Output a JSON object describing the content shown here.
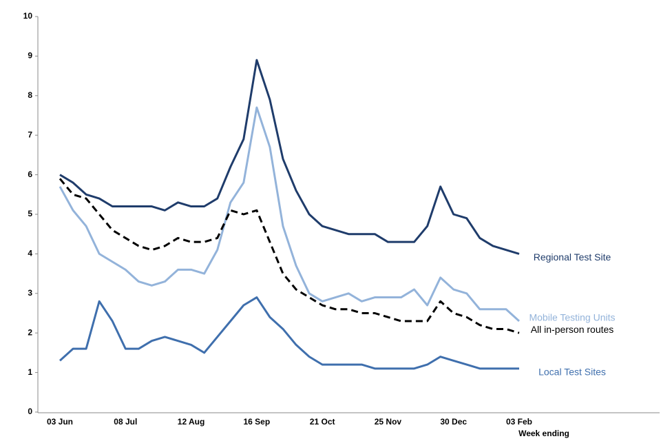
{
  "chart_data": {
    "type": "line",
    "x_label": "Week ending",
    "categories": [
      "03 Jun",
      null,
      null,
      null,
      null,
      "08 Jul",
      null,
      null,
      null,
      null,
      "12 Aug",
      null,
      null,
      null,
      null,
      "16 Sep",
      null,
      null,
      null,
      null,
      "21 Oct",
      null,
      null,
      null,
      null,
      "25 Nov",
      null,
      null,
      null,
      null,
      "30 Dec",
      null,
      null,
      null,
      null,
      "03 Feb"
    ],
    "ylim": [
      0,
      10
    ],
    "yticks": [
      0,
      1,
      2,
      3,
      4,
      5,
      6,
      7,
      8,
      9,
      10
    ],
    "series": [
      {
        "name": "Regional Test Site",
        "color": "#1f3c6b",
        "dashed": false,
        "values": [
          6.0,
          5.8,
          5.5,
          5.4,
          5.2,
          5.2,
          5.2,
          5.2,
          5.1,
          5.3,
          5.2,
          5.2,
          5.4,
          6.2,
          6.9,
          8.9,
          7.9,
          6.4,
          5.6,
          5.0,
          4.7,
          4.6,
          4.5,
          4.5,
          4.5,
          4.3,
          4.3,
          4.3,
          4.7,
          5.7,
          5.0,
          4.9,
          4.4,
          4.2,
          4.1,
          4.0
        ]
      },
      {
        "name": "Mobile Testing Units",
        "color": "#93b3da",
        "dashed": false,
        "values": [
          5.7,
          5.1,
          4.7,
          4.0,
          3.8,
          3.6,
          3.3,
          3.2,
          3.3,
          3.6,
          3.6,
          3.5,
          4.1,
          5.3,
          5.8,
          7.7,
          6.7,
          4.7,
          3.7,
          3.0,
          2.8,
          2.9,
          3.0,
          2.8,
          2.9,
          2.9,
          2.9,
          3.1,
          2.7,
          3.4,
          3.1,
          3.0,
          2.6,
          2.6,
          2.6,
          2.3
        ]
      },
      {
        "name": "All in-person routes",
        "color": "#000000",
        "dashed": true,
        "values": [
          5.9,
          5.5,
          5.4,
          5.0,
          4.6,
          4.4,
          4.2,
          4.1,
          4.2,
          4.4,
          4.3,
          4.3,
          4.4,
          5.1,
          5.0,
          5.1,
          4.3,
          3.5,
          3.1,
          2.9,
          2.7,
          2.6,
          2.6,
          2.5,
          2.5,
          2.4,
          2.3,
          2.3,
          2.3,
          2.8,
          2.5,
          2.4,
          2.2,
          2.1,
          2.1,
          2.0
        ]
      },
      {
        "name": "Local Test Sites",
        "color": "#3f6fad",
        "dashed": false,
        "values": [
          1.3,
          1.6,
          1.6,
          2.8,
          2.3,
          1.6,
          1.6,
          1.8,
          1.9,
          1.8,
          1.7,
          1.5,
          1.9,
          2.3,
          2.7,
          2.9,
          2.4,
          2.1,
          1.7,
          1.4,
          1.2,
          1.2,
          1.2,
          1.2,
          1.1,
          1.1,
          1.1,
          1.1,
          1.2,
          1.4,
          1.3,
          1.2,
          1.1,
          1.1,
          1.1,
          1.1
        ]
      }
    ]
  }
}
